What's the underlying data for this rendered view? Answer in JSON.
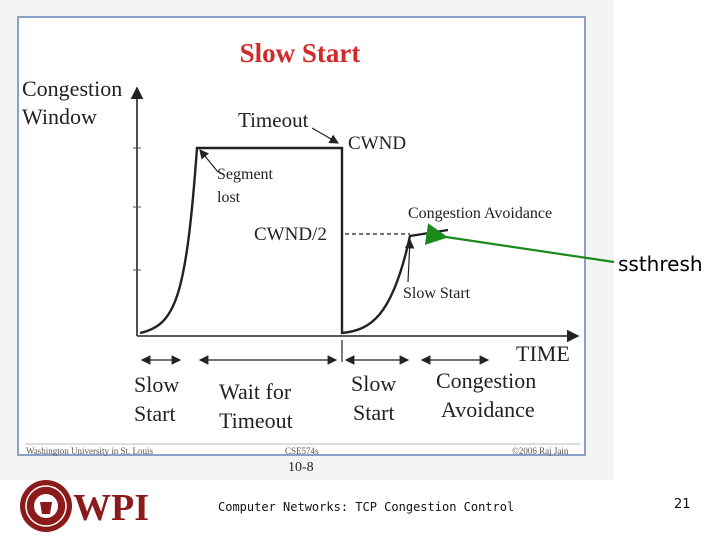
{
  "slide": {
    "title": "Slow Start",
    "axis": {
      "y_line1": "Congestion",
      "y_line2": "Window",
      "x": "TIME"
    },
    "annotations": {
      "timeout": "Timeout",
      "cwnd": "CWND",
      "segment_lost_1": "Segment",
      "segment_lost_2": "lost",
      "cwnd_half": "CWND/2",
      "congestion_avoidance": "Congestion Avoidance",
      "slow_start": "Slow Start"
    },
    "phases": [
      {
        "line1": "Slow",
        "line2": "Start"
      },
      {
        "line1": "Wait for",
        "line2": "Timeout"
      },
      {
        "line1": "Slow",
        "line2": "Start"
      },
      {
        "line1": "Congestion",
        "line2": "Avoidance"
      }
    ],
    "embedded_footer": {
      "left": "Washington University in St. Louis",
      "center": "CSE574s",
      "right": "©2006 Raj Jain"
    },
    "page_label": "10-8",
    "callout": "ssthresh",
    "callout_color": "#1a8a1a",
    "footer_text": "Computer Networks: TCP Congestion Control",
    "slide_number": "21",
    "logo": {
      "text": "WPI",
      "color": "#8b1a1a"
    }
  }
}
